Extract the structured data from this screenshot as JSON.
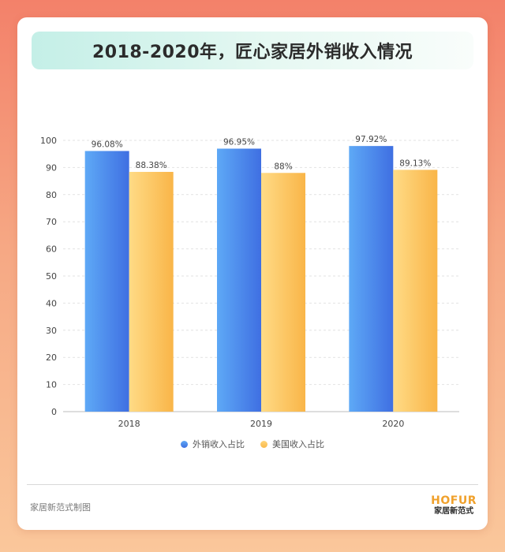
{
  "title": "2018-2020年，匠心家居外销收入情况",
  "chart_data": {
    "type": "bar",
    "categories": [
      "2018",
      "2019",
      "2020"
    ],
    "series": [
      {
        "name": "外销收入占比",
        "values": [
          96.08,
          96.95,
          97.92
        ],
        "labels": [
          "96.08%",
          "96.95%",
          "97.92%"
        ],
        "color": "#4a86ea"
      },
      {
        "name": "美国收入占比",
        "values": [
          88.38,
          88,
          89.13
        ],
        "labels": [
          "88.38%",
          "88%",
          "89.13%"
        ],
        "color": "#fbc25c"
      }
    ],
    "ylim": [
      0,
      100
    ],
    "yticks": [
      0,
      10,
      20,
      30,
      40,
      50,
      60,
      70,
      80,
      90,
      100
    ],
    "grid": true,
    "legend": "bottom"
  },
  "footer": {
    "source": "家居新范式制图",
    "brand_logo": "HOFUR",
    "brand_name": "家居新范式"
  }
}
